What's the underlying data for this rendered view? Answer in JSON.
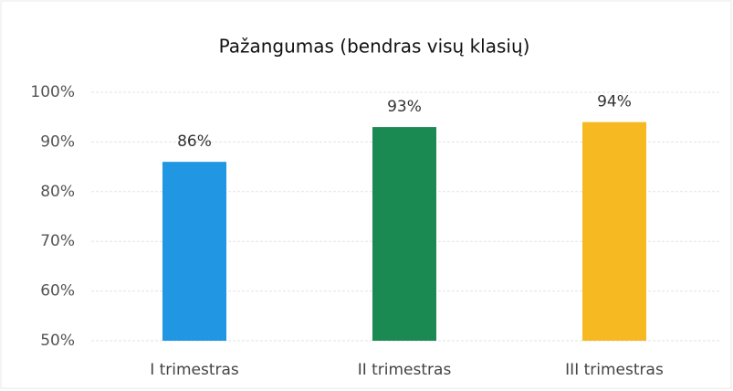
{
  "chart_data": {
    "type": "bar",
    "title": "Pažangumas (bendras visų klasių)",
    "categories": [
      "I trimestras",
      "II trimestras",
      "III trimestras"
    ],
    "values": [
      86,
      93,
      94
    ],
    "value_labels": [
      "86%",
      "93%",
      "94%"
    ],
    "colors": [
      "#2196e3",
      "#1b8a52",
      "#f6b922"
    ],
    "ylim": [
      50,
      100
    ],
    "yticks": [
      {
        "value": 50,
        "label": "50%"
      },
      {
        "value": 60,
        "label": "60%"
      },
      {
        "value": 70,
        "label": "70%"
      },
      {
        "value": 80,
        "label": "80%"
      },
      {
        "value": 90,
        "label": "90%"
      },
      {
        "value": 100,
        "label": "100%"
      }
    ],
    "grid": true
  }
}
